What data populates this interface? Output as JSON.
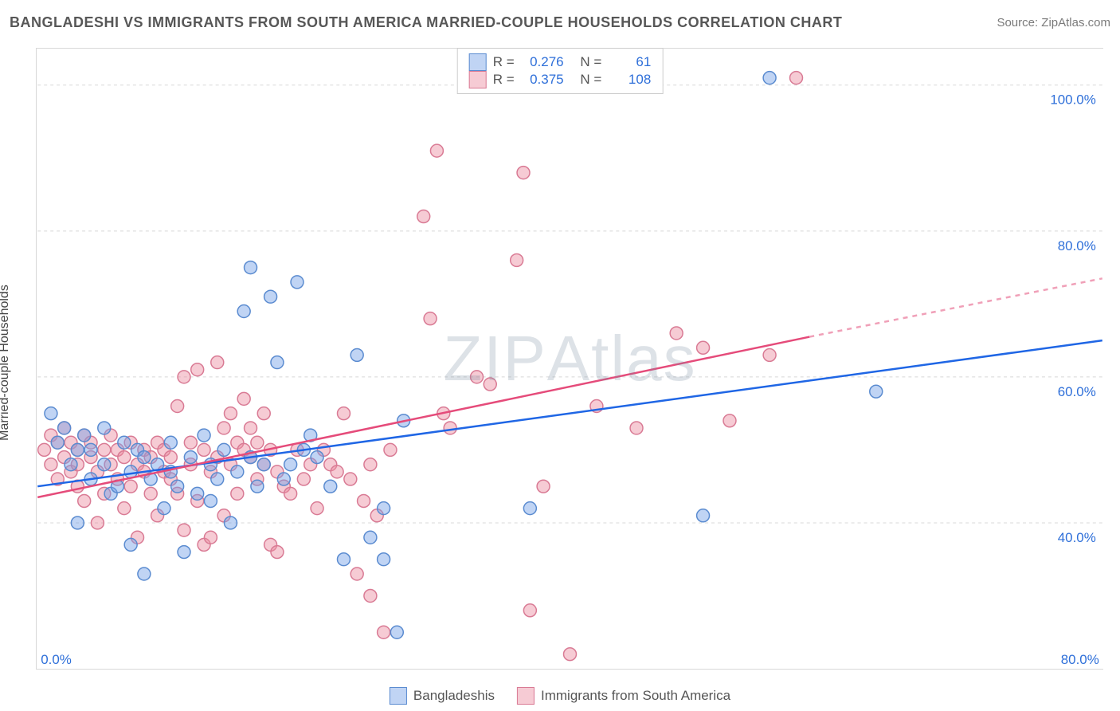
{
  "header": {
    "title": "BANGLADESHI VS IMMIGRANTS FROM SOUTH AMERICA MARRIED-COUPLE HOUSEHOLDS CORRELATION CHART",
    "source": "Source: ZipAtlas.com"
  },
  "axes": {
    "ylabel": "Married-couple Households",
    "xlim": [
      0,
      80
    ],
    "ylim": [
      20,
      105
    ],
    "xticks": [
      {
        "val": 0,
        "label": "0.0%"
      },
      {
        "val": 80,
        "label": "80.0%"
      }
    ],
    "yticks": [
      {
        "val": 40,
        "label": "40.0%"
      },
      {
        "val": 60,
        "label": "60.0%"
      },
      {
        "val": 80,
        "label": "80.0%"
      },
      {
        "val": 100,
        "label": "100.0%"
      }
    ],
    "grid_color": "#d8d8d8",
    "border_color": "#d8d8d8"
  },
  "colors": {
    "series_a_fill": "rgba(115,160,230,0.45)",
    "series_a_stroke": "#5a8bd0",
    "series_b_fill": "rgba(235,140,160,0.45)",
    "series_b_stroke": "#d97a94",
    "trend_a": "#1f66e5",
    "trend_b": "#e54b7a",
    "trend_b_dash": "#f0a0b8",
    "tick_text": "#2e6fd9",
    "axis_text": "#444444",
    "title_text": "#575757",
    "source_text": "#7a7a7a",
    "background": "#ffffff"
  },
  "marker": {
    "radius": 8,
    "stroke_width": 1.5
  },
  "stats_box": {
    "rows": [
      {
        "series": "a",
        "r_label": "R = ",
        "r": "0.276",
        "n_label": "N = ",
        "n": "61"
      },
      {
        "series": "b",
        "r_label": "R = ",
        "r": "0.375",
        "n_label": "N = ",
        "n": "108"
      }
    ]
  },
  "bottom_legend": {
    "items": [
      {
        "series": "a",
        "label": "Bangladeshis"
      },
      {
        "series": "b",
        "label": "Immigrants from South America"
      }
    ]
  },
  "trend_lines": {
    "a": {
      "x1": 0,
      "y1": 45,
      "x2": 80,
      "y2": 65,
      "width": 2.5
    },
    "b": {
      "x1": 0,
      "y1": 43.5,
      "x2": 58,
      "y2": 65.5,
      "width": 2.5,
      "ext_x2": 80,
      "ext_y2": 73.5
    }
  },
  "series_a_points": [
    [
      1,
      55
    ],
    [
      1.5,
      51
    ],
    [
      2,
      53
    ],
    [
      2.5,
      48
    ],
    [
      3,
      50
    ],
    [
      3,
      40
    ],
    [
      3.5,
      52
    ],
    [
      4,
      46
    ],
    [
      4,
      50
    ],
    [
      5,
      48
    ],
    [
      5,
      53
    ],
    [
      5.5,
      44
    ],
    [
      6,
      45
    ],
    [
      6.5,
      51
    ],
    [
      7,
      47
    ],
    [
      7,
      37
    ],
    [
      7.5,
      50
    ],
    [
      8,
      49
    ],
    [
      8,
      33
    ],
    [
      8.5,
      46
    ],
    [
      9,
      48
    ],
    [
      9.5,
      42
    ],
    [
      10,
      47
    ],
    [
      10,
      51
    ],
    [
      10.5,
      45
    ],
    [
      11,
      36
    ],
    [
      11.5,
      49
    ],
    [
      12,
      44
    ],
    [
      12.5,
      52
    ],
    [
      13,
      43
    ],
    [
      13,
      48
    ],
    [
      13.5,
      46
    ],
    [
      14,
      50
    ],
    [
      14.5,
      40
    ],
    [
      15,
      47
    ],
    [
      15.5,
      69
    ],
    [
      16,
      75
    ],
    [
      16,
      49
    ],
    [
      16.5,
      45
    ],
    [
      17,
      48
    ],
    [
      17.5,
      71
    ],
    [
      18,
      62
    ],
    [
      18.5,
      46
    ],
    [
      19,
      48
    ],
    [
      19.5,
      73
    ],
    [
      20,
      50
    ],
    [
      20.5,
      52
    ],
    [
      21,
      49
    ],
    [
      22,
      45
    ],
    [
      23,
      35
    ],
    [
      24,
      63
    ],
    [
      25,
      38
    ],
    [
      26,
      42
    ],
    [
      26,
      35
    ],
    [
      27,
      25
    ],
    [
      27.5,
      54
    ],
    [
      37,
      42
    ],
    [
      50,
      41
    ],
    [
      55,
      101
    ],
    [
      63,
      58
    ]
  ],
  "series_b_points": [
    [
      0.5,
      50
    ],
    [
      1,
      52
    ],
    [
      1,
      48
    ],
    [
      1.5,
      51
    ],
    [
      1.5,
      46
    ],
    [
      2,
      49
    ],
    [
      2,
      53
    ],
    [
      2.5,
      47
    ],
    [
      2.5,
      51
    ],
    [
      3,
      50
    ],
    [
      3,
      45
    ],
    [
      3,
      48
    ],
    [
      3.5,
      52
    ],
    [
      3.5,
      43
    ],
    [
      4,
      49
    ],
    [
      4,
      51
    ],
    [
      4.5,
      47
    ],
    [
      4.5,
      40
    ],
    [
      5,
      50
    ],
    [
      5,
      44
    ],
    [
      5.5,
      48
    ],
    [
      5.5,
      52
    ],
    [
      6,
      46
    ],
    [
      6,
      50
    ],
    [
      6.5,
      42
    ],
    [
      6.5,
      49
    ],
    [
      7,
      51
    ],
    [
      7,
      45
    ],
    [
      7.5,
      48
    ],
    [
      7.5,
      38
    ],
    [
      8,
      50
    ],
    [
      8,
      47
    ],
    [
      8.5,
      44
    ],
    [
      8.5,
      49
    ],
    [
      9,
      51
    ],
    [
      9,
      41
    ],
    [
      9.5,
      47
    ],
    [
      9.5,
      50
    ],
    [
      10,
      46
    ],
    [
      10,
      49
    ],
    [
      10.5,
      56
    ],
    [
      10.5,
      44
    ],
    [
      11,
      60
    ],
    [
      11,
      39
    ],
    [
      11.5,
      48
    ],
    [
      11.5,
      51
    ],
    [
      12,
      61
    ],
    [
      12,
      43
    ],
    [
      12.5,
      50
    ],
    [
      12.5,
      37
    ],
    [
      13,
      47
    ],
    [
      13,
      38
    ],
    [
      13.5,
      62
    ],
    [
      13.5,
      49
    ],
    [
      14,
      53
    ],
    [
      14,
      41
    ],
    [
      14.5,
      55
    ],
    [
      14.5,
      48
    ],
    [
      15,
      51
    ],
    [
      15,
      44
    ],
    [
      15.5,
      50
    ],
    [
      15.5,
      57
    ],
    [
      16,
      49
    ],
    [
      16,
      53
    ],
    [
      16.5,
      46
    ],
    [
      16.5,
      51
    ],
    [
      17,
      55
    ],
    [
      17,
      48
    ],
    [
      17.5,
      50
    ],
    [
      17.5,
      37
    ],
    [
      18,
      36
    ],
    [
      18,
      47
    ],
    [
      18.5,
      45
    ],
    [
      19,
      44
    ],
    [
      19.5,
      50
    ],
    [
      20,
      46
    ],
    [
      20.5,
      48
    ],
    [
      21,
      42
    ],
    [
      21.5,
      50
    ],
    [
      22,
      48
    ],
    [
      22.5,
      47
    ],
    [
      23,
      55
    ],
    [
      23.5,
      46
    ],
    [
      24,
      33
    ],
    [
      24.5,
      43
    ],
    [
      25,
      30
    ],
    [
      25,
      48
    ],
    [
      25.5,
      41
    ],
    [
      26,
      25
    ],
    [
      26.5,
      50
    ],
    [
      29,
      82
    ],
    [
      29.5,
      68
    ],
    [
      30,
      91
    ],
    [
      30.5,
      55
    ],
    [
      31,
      53
    ],
    [
      33,
      60
    ],
    [
      34,
      59
    ],
    [
      36,
      76
    ],
    [
      36.5,
      88
    ],
    [
      37,
      28
    ],
    [
      38,
      45
    ],
    [
      40,
      22
    ],
    [
      42,
      56
    ],
    [
      45,
      53
    ],
    [
      48,
      66
    ],
    [
      50,
      64
    ],
    [
      52,
      54
    ],
    [
      55,
      63
    ],
    [
      57,
      101
    ]
  ],
  "watermark": "ZIPAtlas"
}
